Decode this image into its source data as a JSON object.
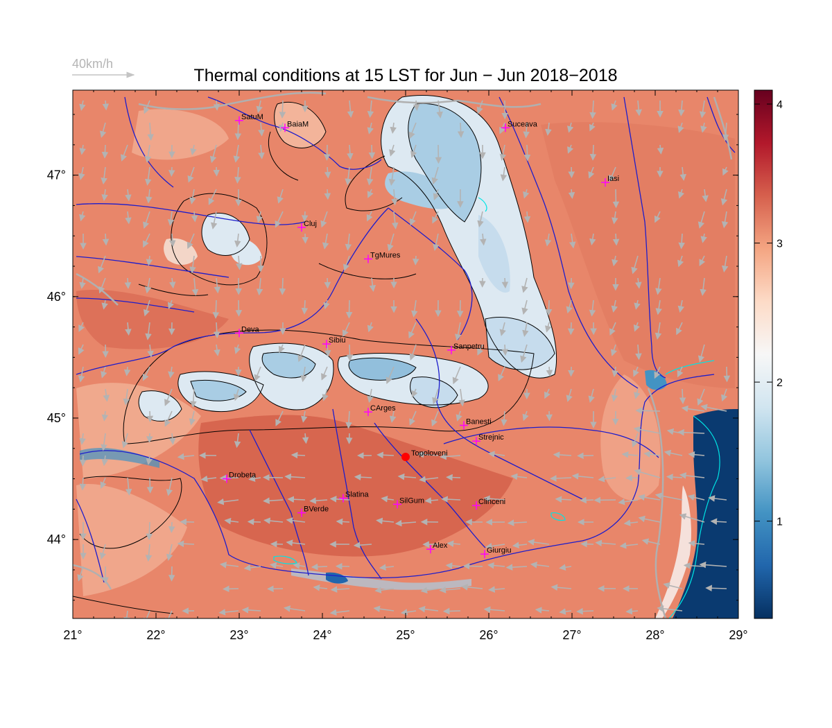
{
  "title": "Thermal conditions at 15 LST for Jun − Jun  2018−2018",
  "reference_vector": {
    "label": "40km/h"
  },
  "map": {
    "lon_range": [
      21,
      29
    ],
    "lat_range": [
      43.35,
      47.7
    ],
    "x_ticks": [
      {
        "value": 21,
        "label": "21°"
      },
      {
        "value": 22,
        "label": "22°"
      },
      {
        "value": 23,
        "label": "23°"
      },
      {
        "value": 24,
        "label": "24°"
      },
      {
        "value": 25,
        "label": "25°"
      },
      {
        "value": 26,
        "label": "26°"
      },
      {
        "value": 27,
        "label": "27°"
      },
      {
        "value": 28,
        "label": "28°"
      },
      {
        "value": 29,
        "label": "29°"
      }
    ],
    "y_ticks": [
      {
        "value": 44,
        "label": "44°"
      },
      {
        "value": 45,
        "label": "45°"
      },
      {
        "value": 46,
        "label": "46°"
      },
      {
        "value": 47,
        "label": "47°"
      }
    ],
    "cities": [
      {
        "name": "SatuM",
        "lon": 23.0,
        "lat": 47.45
      },
      {
        "name": "BaiaM",
        "lon": 23.55,
        "lat": 47.39
      },
      {
        "name": "Suceava",
        "lon": 26.2,
        "lat": 47.39
      },
      {
        "name": "Iasi",
        "lon": 27.4,
        "lat": 46.94
      },
      {
        "name": "Cluj",
        "lon": 23.75,
        "lat": 46.57
      },
      {
        "name": "TgMures",
        "lon": 24.55,
        "lat": 46.31
      },
      {
        "name": "Deva",
        "lon": 23.0,
        "lat": 45.7
      },
      {
        "name": "Sibiu",
        "lon": 24.05,
        "lat": 45.61
      },
      {
        "name": "Sanpetru",
        "lon": 25.55,
        "lat": 45.56
      },
      {
        "name": "CArges",
        "lon": 24.55,
        "lat": 45.05
      },
      {
        "name": "Banesti",
        "lon": 25.7,
        "lat": 44.94
      },
      {
        "name": "Strejnic",
        "lon": 25.85,
        "lat": 44.81
      },
      {
        "name": "Drobeta",
        "lon": 22.85,
        "lat": 44.5
      },
      {
        "name": "Slatina",
        "lon": 24.25,
        "lat": 44.34
      },
      {
        "name": "SilGum",
        "lon": 24.9,
        "lat": 44.29
      },
      {
        "name": "Clinceni",
        "lon": 25.85,
        "lat": 44.28
      },
      {
        "name": "BVerde",
        "lon": 23.75,
        "lat": 44.22
      },
      {
        "name": "Alex",
        "lon": 25.3,
        "lat": 43.92
      },
      {
        "name": "Giurgiu",
        "lon": 25.95,
        "lat": 43.88
      }
    ],
    "highlight": {
      "name": "Topoloveni",
      "lon": 25.0,
      "lat": 44.68,
      "color": "#ff0000"
    },
    "city_marker_color": "#ff00ff"
  },
  "colorbar": {
    "ticks": [
      {
        "value": 1,
        "label": "1"
      },
      {
        "value": 2,
        "label": "2"
      },
      {
        "value": 3,
        "label": "3"
      },
      {
        "value": 4,
        "label": "4"
      }
    ],
    "range": [
      0.3,
      4.1
    ],
    "colors": [
      "#053061",
      "#2166ac",
      "#4393c3",
      "#92c5de",
      "#d1e5f0",
      "#f7f7f7",
      "#fddbc7",
      "#f4a582",
      "#d6604d",
      "#b2182b",
      "#67001f"
    ]
  },
  "colors": {
    "land_warm": "#e8866a",
    "land_hot": "#d4604a",
    "land_mild": "#f3b49a",
    "mountain_cool": "#dde9f2",
    "mountain_cold": "#a9cde4",
    "sea": "#0a3a70",
    "rivers": "#1c1ccc",
    "coast": "#00e5e5",
    "wind_arrows": "#b3b3b3",
    "contours": "#000000"
  }
}
